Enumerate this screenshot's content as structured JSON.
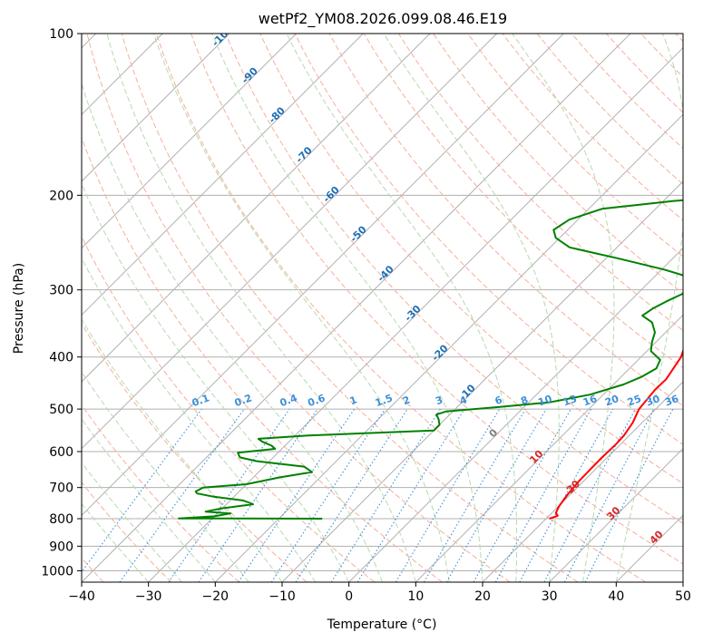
{
  "chart_data": {
    "type": "line",
    "subtype": "skew-T log-P diagram",
    "title": "wetPf2_YM08.2026.099.08.46.E19",
    "xlabel": "Temperature (°C)",
    "ylabel": "Pressure (hPa)",
    "xlim": [
      -40,
      50
    ],
    "ylim": [
      1050,
      100
    ],
    "x_ticks": [
      -40,
      -30,
      -20,
      -10,
      0,
      10,
      20,
      30,
      40,
      50
    ],
    "y_ticks": [
      100,
      200,
      300,
      400,
      500,
      600,
      700,
      800,
      900,
      1000
    ],
    "grid": true,
    "series": [
      {
        "name": "temperature",
        "color": "#ff0000",
        "points": [
          [
            800,
            20.5
          ],
          [
            790,
            21.3
          ],
          [
            780,
            20.6
          ],
          [
            760,
            20.1
          ],
          [
            720,
            19.6
          ],
          [
            680,
            19.3
          ],
          [
            620,
            19.2
          ],
          [
            580,
            19.3
          ],
          [
            560,
            19.2
          ],
          [
            530,
            18.6
          ],
          [
            500,
            17.5
          ],
          [
            460,
            17.0
          ],
          [
            440,
            17.1
          ],
          [
            400,
            16.0
          ],
          [
            370,
            14.2
          ],
          [
            360,
            13.8
          ],
          [
            345,
            13.8
          ],
          [
            330,
            14.0
          ],
          [
            310,
            12.6
          ],
          [
            290,
            10.0
          ],
          [
            270,
            8.4
          ],
          [
            240,
            6.8
          ],
          [
            210,
            4.7
          ],
          [
            190,
            3.4
          ],
          [
            175,
            1.4
          ],
          [
            165,
            0.1
          ],
          [
            155,
            -2.1
          ],
          [
            145,
            -1.9
          ],
          [
            130,
            -0.2
          ],
          [
            120,
            0.9
          ],
          [
            110,
            2.4
          ],
          [
            100,
            3.5
          ]
        ]
      },
      {
        "name": "dewpoint",
        "color": "#008000",
        "points": [
          [
            800,
            -13.5
          ],
          [
            799,
            -35
          ],
          [
            792,
            -30
          ],
          [
            782,
            -28
          ],
          [
            776,
            -32
          ],
          [
            765,
            -30
          ],
          [
            752,
            -26
          ],
          [
            740,
            -28
          ],
          [
            728,
            -33
          ],
          [
            718,
            -36
          ],
          [
            712,
            -36.5
          ],
          [
            700,
            -36
          ],
          [
            690,
            -30
          ],
          [
            670,
            -26
          ],
          [
            655,
            -22
          ],
          [
            640,
            -24
          ],
          [
            625,
            -32
          ],
          [
            615,
            -35
          ],
          [
            603,
            -36
          ],
          [
            593,
            -31
          ],
          [
            585,
            -32
          ],
          [
            575,
            -34
          ],
          [
            568,
            -35
          ],
          [
            560,
            -28
          ],
          [
            548,
            -10
          ],
          [
            535,
            -10
          ],
          [
            522,
            -11
          ],
          [
            512,
            -12
          ],
          [
            505,
            -11
          ],
          [
            496,
            -4
          ],
          [
            486,
            3
          ],
          [
            470,
            8
          ],
          [
            450,
            11.5
          ],
          [
            435,
            13.1
          ],
          [
            420,
            14.0
          ],
          [
            405,
            13.3
          ],
          [
            390,
            10.6
          ],
          [
            375,
            9.4
          ],
          [
            360,
            8.4
          ],
          [
            345,
            6.5
          ],
          [
            335,
            4.0
          ],
          [
            325,
            4.5
          ],
          [
            315,
            5.5
          ],
          [
            305,
            6.8
          ],
          [
            295,
            7.0
          ],
          [
            285,
            5.8
          ],
          [
            275,
            0.4
          ],
          [
            262,
            -8.3
          ],
          [
            250,
            -17.1
          ],
          [
            240,
            -20.6
          ],
          [
            232,
            -22.1
          ],
          [
            222,
            -21.3
          ],
          [
            212,
            -18.0
          ],
          [
            205,
            -8.6
          ],
          [
            200,
            1.6
          ],
          [
            195,
            3.1
          ],
          [
            188,
            3.7
          ],
          [
            178,
            3.0
          ],
          [
            165,
            1.7
          ],
          [
            155,
            -0.6
          ],
          [
            148,
            -4.7
          ],
          [
            142,
            -13.3
          ],
          [
            137,
            -17.1
          ],
          [
            133,
            -20.2
          ],
          [
            128,
            -21.7
          ],
          [
            122,
            -21.6
          ],
          [
            115,
            -18.4
          ],
          [
            108,
            -13.8
          ],
          [
            100,
            -9.4
          ]
        ]
      }
    ],
    "reference_lines": {
      "isotherm_labels": [
        "-100",
        "-90",
        "-80",
        "-70",
        "-60",
        "-50",
        "-40",
        "-30",
        "-20",
        "-10",
        "0",
        "10",
        "20",
        "30",
        "40"
      ],
      "mixing_ratio_labels": [
        "0.1",
        "0.2",
        "0.4",
        "0.6",
        "1",
        "1.5",
        "2",
        "3",
        "4",
        "6",
        "8",
        "10",
        "13",
        "16",
        "20",
        "25",
        "30",
        "36"
      ],
      "isotherm_values": [
        -100,
        -90,
        -80,
        -70,
        -60,
        -50,
        -40,
        -30,
        -20,
        -10,
        0,
        10,
        20,
        30,
        40
      ],
      "mixing_ratio_values": [
        0.1,
        0.2,
        0.4,
        0.6,
        1,
        1.5,
        2,
        3,
        4,
        6,
        8,
        10,
        13,
        16,
        20,
        25,
        30,
        36
      ]
    }
  }
}
